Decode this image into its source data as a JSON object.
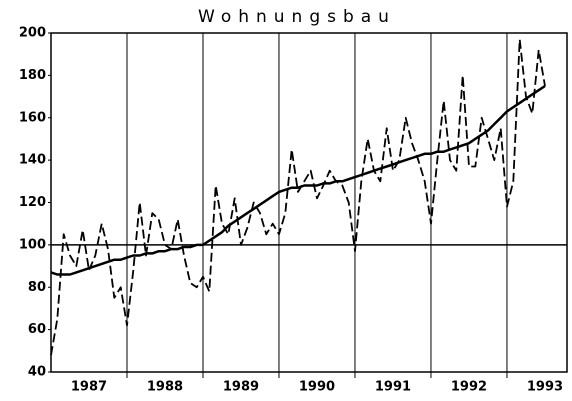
{
  "chart_data": {
    "type": "line",
    "title": "Wohnungsbau",
    "x": [
      1987,
      1987.083,
      1987.167,
      1987.25,
      1987.333,
      1987.417,
      1987.5,
      1987.583,
      1987.667,
      1987.75,
      1987.833,
      1987.917,
      1988,
      1988.083,
      1988.167,
      1988.25,
      1988.333,
      1988.417,
      1988.5,
      1988.583,
      1988.667,
      1988.75,
      1988.833,
      1988.917,
      1989,
      1989.083,
      1989.167,
      1989.25,
      1989.333,
      1989.417,
      1989.5,
      1989.583,
      1989.667,
      1989.75,
      1989.833,
      1989.917,
      1990,
      1990.083,
      1990.167,
      1990.25,
      1990.333,
      1990.417,
      1990.5,
      1990.583,
      1990.667,
      1990.75,
      1990.833,
      1990.917,
      1991,
      1991.083,
      1991.167,
      1991.25,
      1991.333,
      1991.417,
      1991.5,
      1991.583,
      1991.667,
      1991.75,
      1991.833,
      1991.917,
      1992,
      1992.083,
      1992.167,
      1992.25,
      1992.333,
      1992.417,
      1992.5,
      1992.583,
      1992.667,
      1992.75,
      1992.833,
      1992.917,
      1993,
      1993.083,
      1993.167,
      1993.25,
      1993.333,
      1993.417,
      1993.5
    ],
    "series": [
      {
        "color": "#000000",
        "dash": true,
        "values": [
          48,
          65,
          105,
          95,
          90,
          107,
          88,
          95,
          110,
          98,
          75,
          80,
          62,
          88,
          120,
          95,
          115,
          112,
          100,
          98,
          112,
          95,
          82,
          80,
          85,
          78,
          128,
          110,
          105,
          122,
          100,
          108,
          120,
          115,
          105,
          110,
          105,
          115,
          145,
          125,
          130,
          135,
          122,
          128,
          135,
          130,
          128,
          120,
          97,
          130,
          150,
          135,
          130,
          155,
          135,
          140,
          160,
          148,
          140,
          130,
          110,
          140,
          168,
          140,
          135,
          180,
          137,
          137,
          160,
          150,
          140,
          155,
          118,
          130,
          197,
          170,
          162,
          192,
          175
        ]
      },
      {
        "color": "#000000",
        "dash": false,
        "values": [
          87,
          86,
          86,
          86,
          87,
          88,
          89,
          90,
          91,
          92,
          93,
          93,
          94,
          95,
          95,
          96,
          96,
          97,
          97,
          98,
          98,
          99,
          99,
          100,
          100,
          102,
          104,
          106,
          109,
          111,
          113,
          115,
          117,
          119,
          121,
          123,
          125,
          126,
          127,
          127,
          128,
          128,
          128,
          129,
          129,
          130,
          130,
          131,
          132,
          133,
          134,
          135,
          136,
          137,
          138,
          139,
          140,
          141,
          142,
          143,
          143,
          144,
          144,
          145,
          146,
          147,
          148,
          150,
          152,
          154,
          157,
          160,
          163,
          165,
          167,
          169,
          171,
          173,
          175
        ]
      }
    ],
    "xlim": [
      1987,
      1993.79
    ],
    "xticks": [
      {
        "value": 1987.5,
        "label": "1987"
      },
      {
        "value": 1988.5,
        "label": "1988"
      },
      {
        "value": 1989.5,
        "label": "1989"
      },
      {
        "value": 1990.5,
        "label": "1990"
      },
      {
        "value": 1991.5,
        "label": "1991"
      },
      {
        "value": 1992.5,
        "label": "1992"
      },
      {
        "value": 1993.5,
        "label": "1993"
      }
    ],
    "xgrid": [
      1988,
      1989,
      1990,
      1991,
      1992,
      1993
    ],
    "ylim": [
      40,
      200
    ],
    "yticks": [
      40,
      60,
      80,
      100,
      120,
      140,
      160,
      180,
      200
    ],
    "hline": 100
  }
}
